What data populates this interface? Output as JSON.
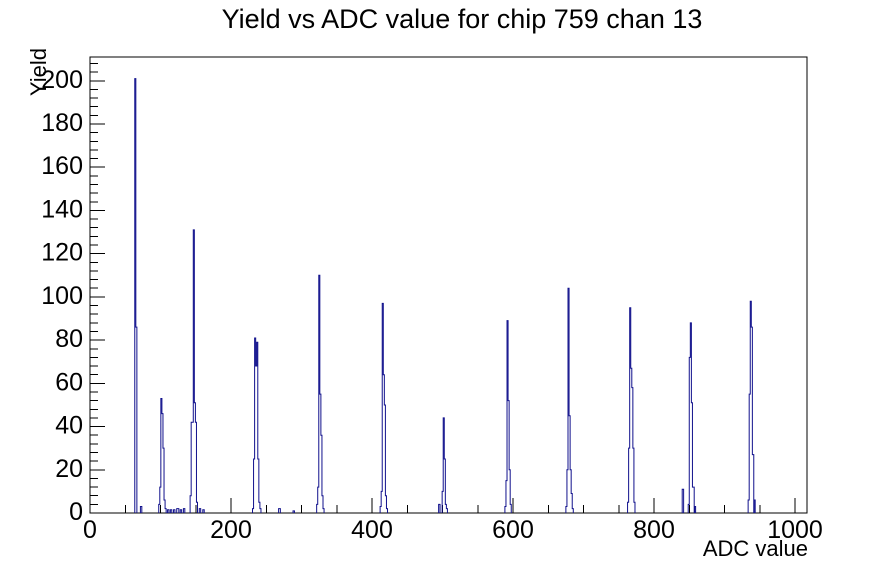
{
  "chart_data": {
    "type": "bar",
    "subtype": "root-histogram-outline",
    "title": "Yield vs ADC value for chip 759 chan 13",
    "xlabel": "ADC value",
    "ylabel": "Yield",
    "xlim": [
      0,
      1017
    ],
    "ylim": [
      0,
      211
    ],
    "grid": false,
    "legend": false,
    "x_major_ticks": [
      0,
      200,
      400,
      600,
      800,
      1000
    ],
    "x_major_tick_labels": [
      "0",
      "200",
      "400",
      "600",
      "800",
      "1000"
    ],
    "x_minor_tick_step": 50,
    "y_major_ticks": [
      0,
      20,
      40,
      60,
      80,
      100,
      120,
      140,
      160,
      180,
      200
    ],
    "y_major_tick_labels": [
      "0",
      "20",
      "40",
      "60",
      "80",
      "100",
      "120",
      "140",
      "160",
      "180",
      "200"
    ],
    "y_minor_tick_step": 4,
    "colors": {
      "histogram_line": "#10108C",
      "axis": "#000000",
      "background": "#FFFFFF"
    },
    "peaks": [
      {
        "adc": 65,
        "yield": 201
      },
      {
        "adc": 101,
        "yield": 53
      },
      {
        "adc": 147,
        "yield": 131
      },
      {
        "adc": 234,
        "yield": 81
      },
      {
        "adc": 325,
        "yield": 110
      },
      {
        "adc": 415,
        "yield": 97
      },
      {
        "adc": 501,
        "yield": 44
      },
      {
        "adc": 592,
        "yield": 89
      },
      {
        "adc": 678,
        "yield": 104
      },
      {
        "adc": 766,
        "yield": 95
      },
      {
        "adc": 852,
        "yield": 88
      },
      {
        "adc": 937,
        "yield": 98
      }
    ],
    "bins": [
      [
        63.5,
        1.5,
        201
      ],
      [
        65,
        1.5,
        86
      ],
      [
        71.5,
        2,
        3
      ],
      [
        97.5,
        1.5,
        4
      ],
      [
        99,
        1.5,
        12
      ],
      [
        100.5,
        1.5,
        53
      ],
      [
        102,
        1.5,
        46
      ],
      [
        103.5,
        1.5,
        30
      ],
      [
        105,
        1.5,
        6
      ],
      [
        106.5,
        1.5,
        2
      ],
      [
        110,
        2,
        1.5
      ],
      [
        114,
        2,
        1.5
      ],
      [
        118.5,
        2,
        1.5
      ],
      [
        123,
        3,
        2
      ],
      [
        128,
        2,
        1.5
      ],
      [
        132.5,
        2,
        2
      ],
      [
        142,
        1.5,
        8
      ],
      [
        143.5,
        1.5,
        42
      ],
      [
        145,
        1.5,
        42
      ],
      [
        146.5,
        1.5,
        131
      ],
      [
        148,
        1.5,
        51
      ],
      [
        149.5,
        1.5,
        42
      ],
      [
        151,
        1.5,
        5
      ],
      [
        155,
        2,
        2
      ],
      [
        160,
        2,
        1.5
      ],
      [
        230.5,
        1.5,
        2
      ],
      [
        232,
        1.5,
        25
      ],
      [
        233.5,
        1.5,
        81
      ],
      [
        235,
        1.5,
        68
      ],
      [
        236.5,
        1.5,
        79
      ],
      [
        238,
        1.5,
        25
      ],
      [
        239.5,
        1.5,
        5
      ],
      [
        241,
        1.5,
        2
      ],
      [
        267.5,
        2.5,
        2
      ],
      [
        288,
        2,
        1
      ],
      [
        321.5,
        1.5,
        4
      ],
      [
        323,
        1.5,
        12
      ],
      [
        324.5,
        1.5,
        110
      ],
      [
        326,
        1.5,
        55
      ],
      [
        327.5,
        1.5,
        36
      ],
      [
        329,
        1.5,
        8
      ],
      [
        330.5,
        1.5,
        2
      ],
      [
        411.5,
        1.5,
        3
      ],
      [
        413,
        1.5,
        10
      ],
      [
        414.5,
        1.5,
        97
      ],
      [
        416,
        1.5,
        64
      ],
      [
        417.5,
        1.5,
        50
      ],
      [
        419,
        1.5,
        8
      ],
      [
        420.5,
        1.5,
        2
      ],
      [
        494.5,
        2,
        4
      ],
      [
        499.5,
        1.5,
        10
      ],
      [
        501,
        1.5,
        44
      ],
      [
        502.5,
        1.5,
        25
      ],
      [
        504,
        1.5,
        4
      ],
      [
        505.5,
        1.5,
        2
      ],
      [
        588.5,
        1.5,
        3
      ],
      [
        590,
        1.5,
        15
      ],
      [
        591.5,
        1.5,
        89
      ],
      [
        593,
        1.5,
        52
      ],
      [
        594.5,
        1.5,
        20
      ],
      [
        596,
        1.5,
        4
      ],
      [
        675,
        1.5,
        3
      ],
      [
        676.5,
        1.5,
        20
      ],
      [
        678,
        1.5,
        104
      ],
      [
        679.5,
        1.5,
        45
      ],
      [
        681,
        1.5,
        20
      ],
      [
        682.5,
        1.5,
        9
      ],
      [
        684,
        1.5,
        2
      ],
      [
        762.5,
        1.5,
        5
      ],
      [
        764,
        1.5,
        30
      ],
      [
        765.5,
        1.5,
        95
      ],
      [
        767,
        1.5,
        67
      ],
      [
        768.5,
        1.5,
        58
      ],
      [
        770,
        1.5,
        30
      ],
      [
        771.5,
        1.5,
        5
      ],
      [
        840,
        2,
        11
      ],
      [
        848.5,
        1.5,
        4
      ],
      [
        850,
        1.5,
        72
      ],
      [
        851.5,
        1.5,
        88
      ],
      [
        853,
        1.5,
        51
      ],
      [
        854.5,
        2.5,
        12
      ],
      [
        857.5,
        1.5,
        3
      ],
      [
        933.5,
        1.5,
        6
      ],
      [
        935,
        1.5,
        55
      ],
      [
        936.5,
        1.5,
        98
      ],
      [
        938,
        1.5,
        86
      ],
      [
        939.5,
        2,
        27
      ],
      [
        942,
        1.5,
        6
      ]
    ]
  }
}
